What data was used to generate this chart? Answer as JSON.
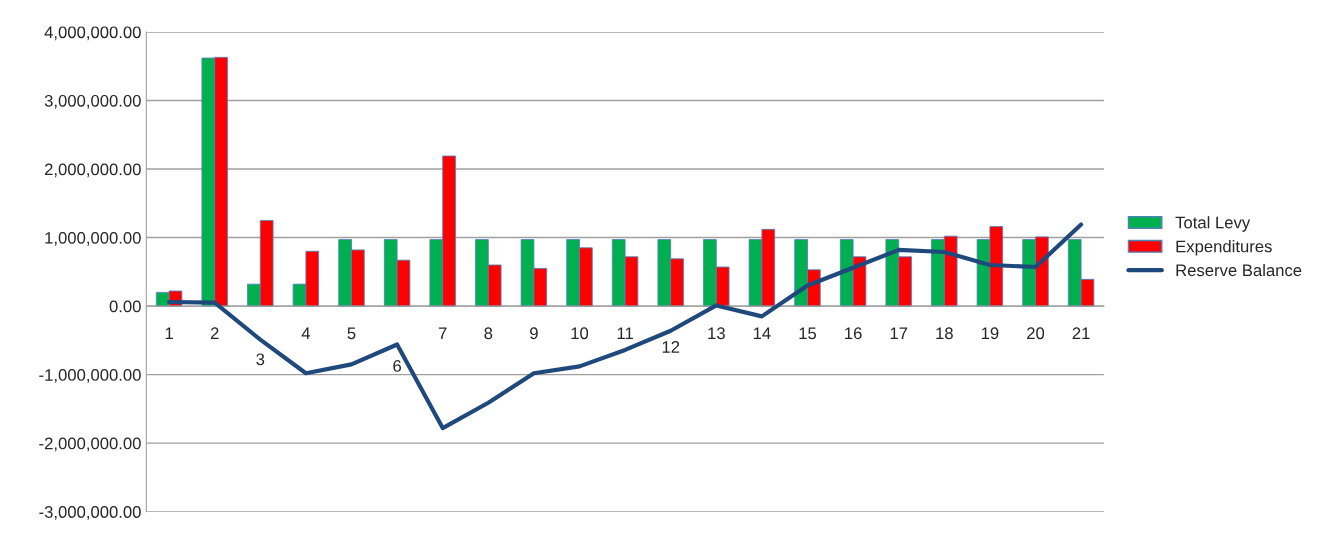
{
  "chart_data": {
    "type": "bar",
    "categories": [
      "1",
      "2",
      "3",
      "4",
      "5",
      "6",
      "7",
      "8",
      "9",
      "10",
      "11",
      "12",
      "13",
      "14",
      "15",
      "16",
      "17",
      "18",
      "19",
      "20",
      "21"
    ],
    "series": [
      {
        "name": "Total Levy",
        "color": "#00b050",
        "values": [
          200000,
          3620000,
          320000,
          320000,
          970000,
          970000,
          970000,
          970000,
          970000,
          970000,
          970000,
          970000,
          970000,
          970000,
          970000,
          970000,
          970000,
          970000,
          970000,
          970000,
          970000
        ]
      },
      {
        "name": "Expenditures",
        "color": "#ff0000",
        "values": [
          220000,
          3630000,
          1250000,
          800000,
          820000,
          670000,
          2190000,
          600000,
          550000,
          850000,
          720000,
          690000,
          570000,
          1120000,
          530000,
          720000,
          720000,
          1020000,
          1160000,
          1010000,
          390000
        ]
      },
      {
        "name": "Reserve Balance",
        "type": "line",
        "color": "#1f497d",
        "values": [
          60000,
          50000,
          -490000,
          -980000,
          -850000,
          -560000,
          -1780000,
          -1410000,
          -980000,
          -880000,
          -640000,
          -360000,
          10000,
          -150000,
          300000,
          560000,
          820000,
          790000,
          600000,
          570000,
          1190000
        ]
      }
    ],
    "ylim": [
      -3000000,
      4000000
    ],
    "yticks": [
      {
        "value": -3000000,
        "label": "-3,000,000.00"
      },
      {
        "value": -2000000,
        "label": "-2,000,000.00"
      },
      {
        "value": -1000000,
        "label": "-1,000,000.00"
      },
      {
        "value": 0,
        "label": "0.00"
      },
      {
        "value": 1000000,
        "label": "1,000,000.00"
      },
      {
        "value": 2000000,
        "label": "2,000,000.00"
      },
      {
        "value": 3000000,
        "label": "3,000,000.00"
      },
      {
        "value": 4000000,
        "label": "4,000,000.00"
      }
    ],
    "grid": "y",
    "legend": "right"
  }
}
